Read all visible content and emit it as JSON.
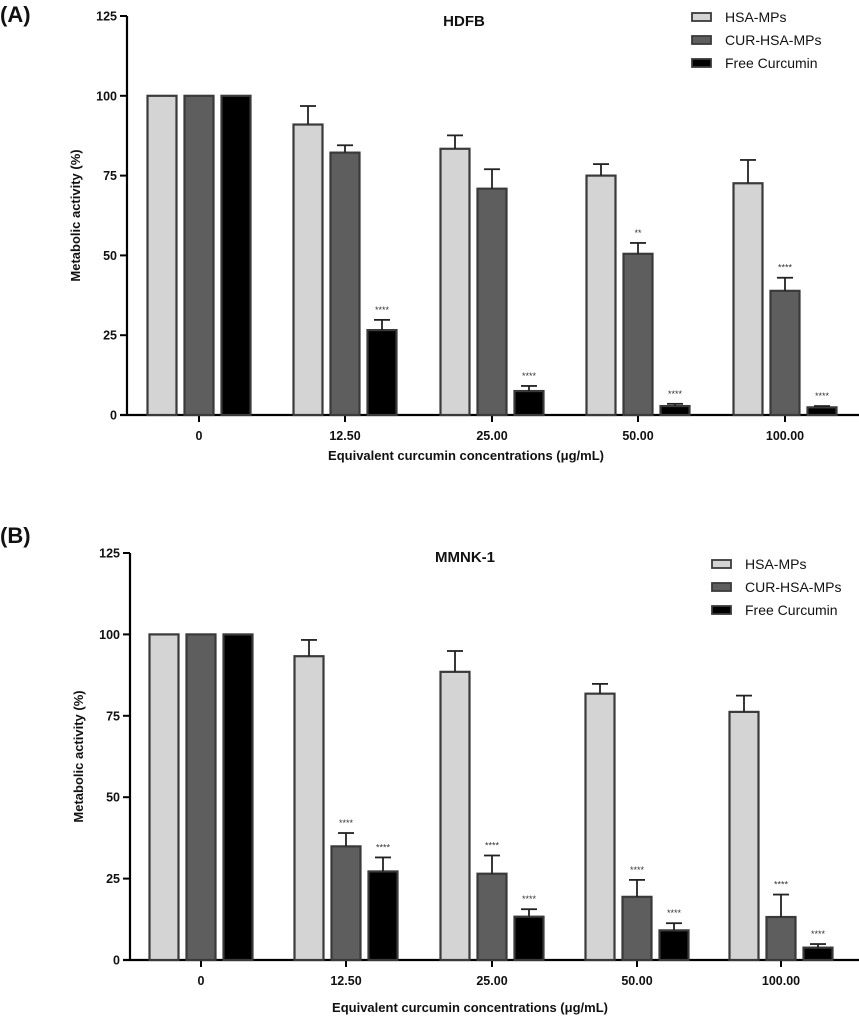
{
  "chart_data": [
    {
      "type": "bar",
      "panel_label": "(A)",
      "title": "HDFB",
      "xlabel": "Equivalent curcumin concentrations (μg/mL)",
      "ylabel": "Metabolic activity (%)",
      "ylim": [
        0,
        125
      ],
      "yticks": [
        0,
        25,
        50,
        75,
        100,
        125
      ],
      "categories": [
        "0",
        "12.50",
        "25.00",
        "50.00",
        "100.00"
      ],
      "legend_position": "top-right",
      "series": [
        {
          "name": "HSA-MPs",
          "color": "#d4d4d4",
          "values": [
            100,
            91,
            83.4,
            75,
            72.6
          ],
          "errors": [
            0,
            5.8,
            4.2,
            3.6,
            7.3
          ],
          "annotations": [
            "",
            "",
            "",
            "",
            ""
          ]
        },
        {
          "name": "CUR-HSA-MPs",
          "color": "#5e5e5e",
          "values": [
            100,
            82.2,
            70.9,
            50.5,
            38.9
          ],
          "errors": [
            0,
            2.3,
            6.1,
            3.4,
            4.1
          ],
          "annotations": [
            "",
            "",
            "",
            "**",
            "****"
          ]
        },
        {
          "name": "Free Curcumin",
          "color": "#000000",
          "values": [
            100,
            26.6,
            7.5,
            2.8,
            2.4
          ],
          "errors": [
            0,
            3.2,
            1.6,
            0.7,
            0.4
          ],
          "annotations": [
            "",
            "****",
            "****",
            "****",
            "****"
          ]
        }
      ]
    },
    {
      "type": "bar",
      "panel_label": "(B)",
      "title": "MMNK-1",
      "xlabel": "Equivalent curcumin concentrations (μg/mL)",
      "ylabel": "Metabolic activity (%)",
      "ylim": [
        0,
        125
      ],
      "yticks": [
        0,
        25,
        50,
        75,
        100,
        125
      ],
      "categories": [
        "0",
        "12.50",
        "25.00",
        "50.00",
        "100.00"
      ],
      "legend_position": "top-right",
      "series": [
        {
          "name": "HSA-MPs",
          "color": "#d4d4d4",
          "values": [
            100,
            93.3,
            88.5,
            81.8,
            76.2
          ],
          "errors": [
            0,
            5.0,
            6.4,
            3.0,
            5.0
          ],
          "annotations": [
            "",
            "",
            "",
            "",
            ""
          ]
        },
        {
          "name": "CUR-HSA-MPs",
          "color": "#5e5e5e",
          "values": [
            100,
            34.9,
            26.5,
            19.4,
            13.2
          ],
          "errors": [
            0,
            4.1,
            5.6,
            5.2,
            6.9
          ],
          "annotations": [
            "",
            "****",
            "****",
            "****",
            "****"
          ]
        },
        {
          "name": "Free Curcumin",
          "color": "#000000",
          "values": [
            100,
            27.2,
            13.3,
            9.1,
            3.8
          ],
          "errors": [
            0,
            4.3,
            2.3,
            2.2,
            1.1
          ],
          "annotations": [
            "",
            "****",
            "****",
            "****",
            "****"
          ]
        }
      ]
    }
  ]
}
